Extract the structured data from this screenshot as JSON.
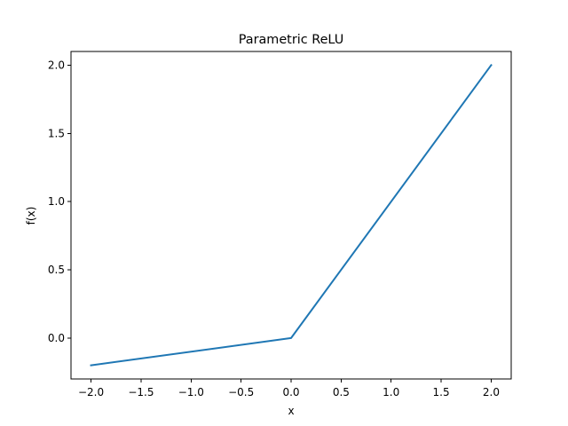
{
  "chart_data": {
    "type": "line",
    "title": "Parametric ReLU",
    "xlabel": "x",
    "ylabel": "f(x)",
    "xlim": [
      -2.2,
      2.2
    ],
    "ylim": [
      -0.3,
      2.1
    ],
    "x_ticks": [
      -2.0,
      -1.5,
      -1.0,
      -0.5,
      0.0,
      0.5,
      1.0,
      1.5,
      2.0
    ],
    "x_tick_labels": [
      "−2.0",
      "−1.5",
      "−1.0",
      "−0.5",
      "0.0",
      "0.5",
      "1.0",
      "1.5",
      "2.0"
    ],
    "y_ticks": [
      0.0,
      0.5,
      1.0,
      1.5,
      2.0
    ],
    "y_tick_labels": [
      "0.0",
      "0.5",
      "1.0",
      "1.5",
      "2.0"
    ],
    "grid": false,
    "series": [
      {
        "color": "#1f77b4",
        "x": [
          -2.0,
          0.0,
          2.0
        ],
        "y": [
          -0.2,
          0.0,
          2.0
        ]
      }
    ]
  }
}
